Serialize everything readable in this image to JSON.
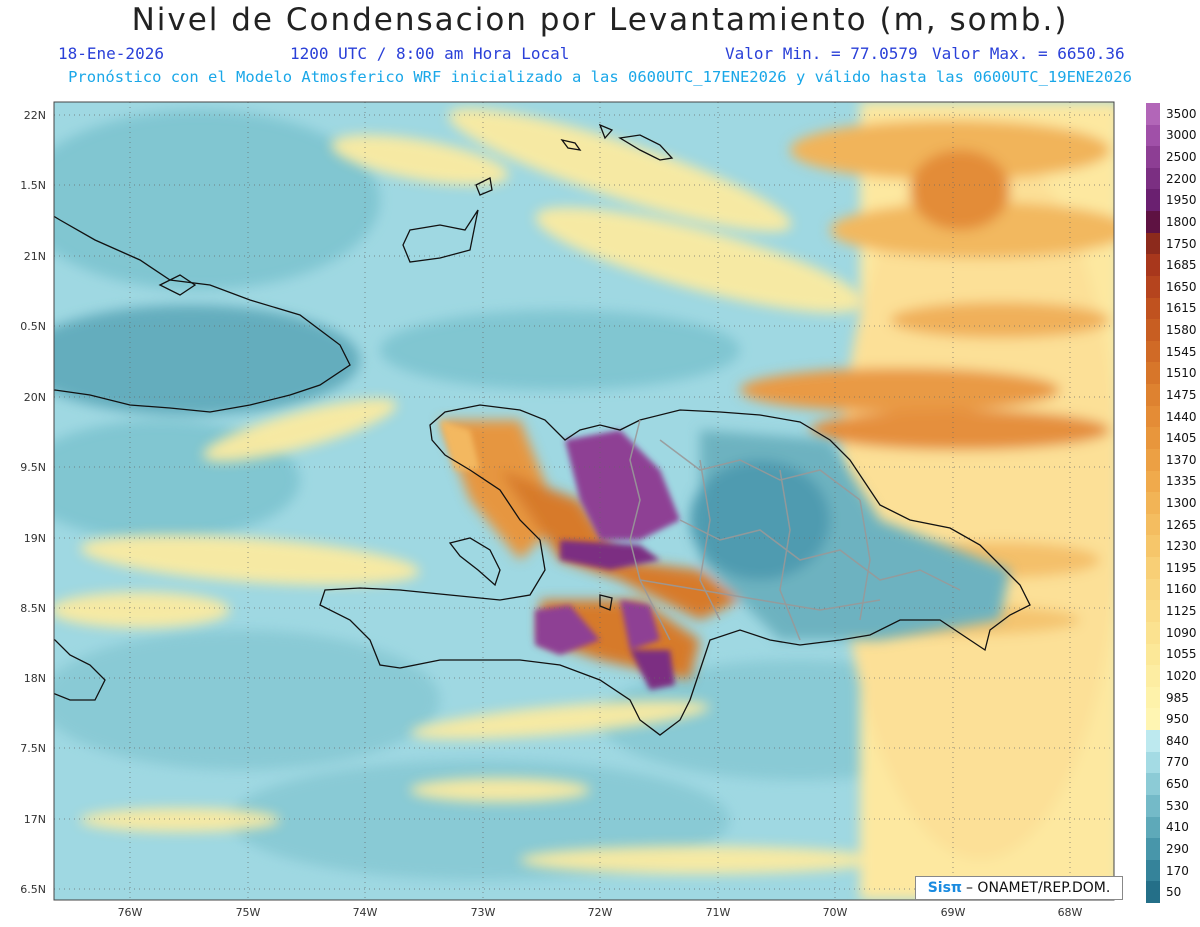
{
  "header": {
    "title": "Nivel de Condensacion por Levantamiento (m, somb.)",
    "date": "18-Ene-2026",
    "time": "1200 UTC / 8:00 am Hora Local",
    "min_label": "Valor Min. = 77.0579",
    "max_label": "Valor Max. = 6650.36",
    "subtitle": "Pronóstico con el Modelo Atmosferico WRF inicializado a las 0600UTC_17ENE2026 y válido hasta las  0600UTC_19ENE2026"
  },
  "axes": {
    "lat_labels": [
      "22N",
      "1.5N",
      "21N",
      "0.5N",
      "20N",
      "9.5N",
      "19N",
      "8.5N",
      "18N",
      "7.5N",
      "17N",
      "6.5N"
    ],
    "lon_labels": [
      "76W",
      "75W",
      "74W",
      "73W",
      "72W",
      "71W",
      "70W",
      "69W",
      "68W"
    ]
  },
  "legend": {
    "items": [
      {
        "label": "3500",
        "color": "#b266b8"
      },
      {
        "label": "3000",
        "color": "#a050a8"
      },
      {
        "label": "2500",
        "color": "#8d3e94"
      },
      {
        "label": "2200",
        "color": "#7b2f82"
      },
      {
        "label": "1950",
        "color": "#6a2070"
      },
      {
        "label": "1800",
        "color": "#5e1242"
      },
      {
        "label": "1750",
        "color": "#8c2a1c"
      },
      {
        "label": "1685",
        "color": "#a8371c"
      },
      {
        "label": "1650",
        "color": "#b5441e"
      },
      {
        "label": "1615",
        "color": "#c0521f"
      },
      {
        "label": "1580",
        "color": "#c85e22"
      },
      {
        "label": "1545",
        "color": "#d06a26"
      },
      {
        "label": "1510",
        "color": "#d7762a"
      },
      {
        "label": "1475",
        "color": "#de8230"
      },
      {
        "label": "1440",
        "color": "#e48c36"
      },
      {
        "label": "1405",
        "color": "#e8963c"
      },
      {
        "label": "1370",
        "color": "#eca044"
      },
      {
        "label": "1335",
        "color": "#f0aa4c"
      },
      {
        "label": "1300",
        "color": "#f2b456"
      },
      {
        "label": "1265",
        "color": "#f4bd60"
      },
      {
        "label": "1230",
        "color": "#f6c66a"
      },
      {
        "label": "1195",
        "color": "#f8cf76"
      },
      {
        "label": "1160",
        "color": "#f9d680"
      },
      {
        "label": "1125",
        "color": "#fadc88"
      },
      {
        "label": "1090",
        "color": "#fbe290"
      },
      {
        "label": "1055",
        "color": "#fce898"
      },
      {
        "label": "1020",
        "color": "#fdeda2"
      },
      {
        "label": "985",
        "color": "#fef2aa"
      },
      {
        "label": "950",
        "color": "#fff5b2"
      },
      {
        "label": "840",
        "color": "#bde9ef"
      },
      {
        "label": "770",
        "color": "#a4dbe4"
      },
      {
        "label": "650",
        "color": "#8ccbd6"
      },
      {
        "label": "530",
        "color": "#74bac8"
      },
      {
        "label": "410",
        "color": "#5ea9b9"
      },
      {
        "label": "290",
        "color": "#4896aa"
      },
      {
        "label": "170",
        "color": "#35839a"
      },
      {
        "label": "50",
        "color": "#246f88"
      }
    ]
  },
  "credit": {
    "logo": "Sisπ",
    "text": "– ONAMET/REP.DOM."
  }
}
